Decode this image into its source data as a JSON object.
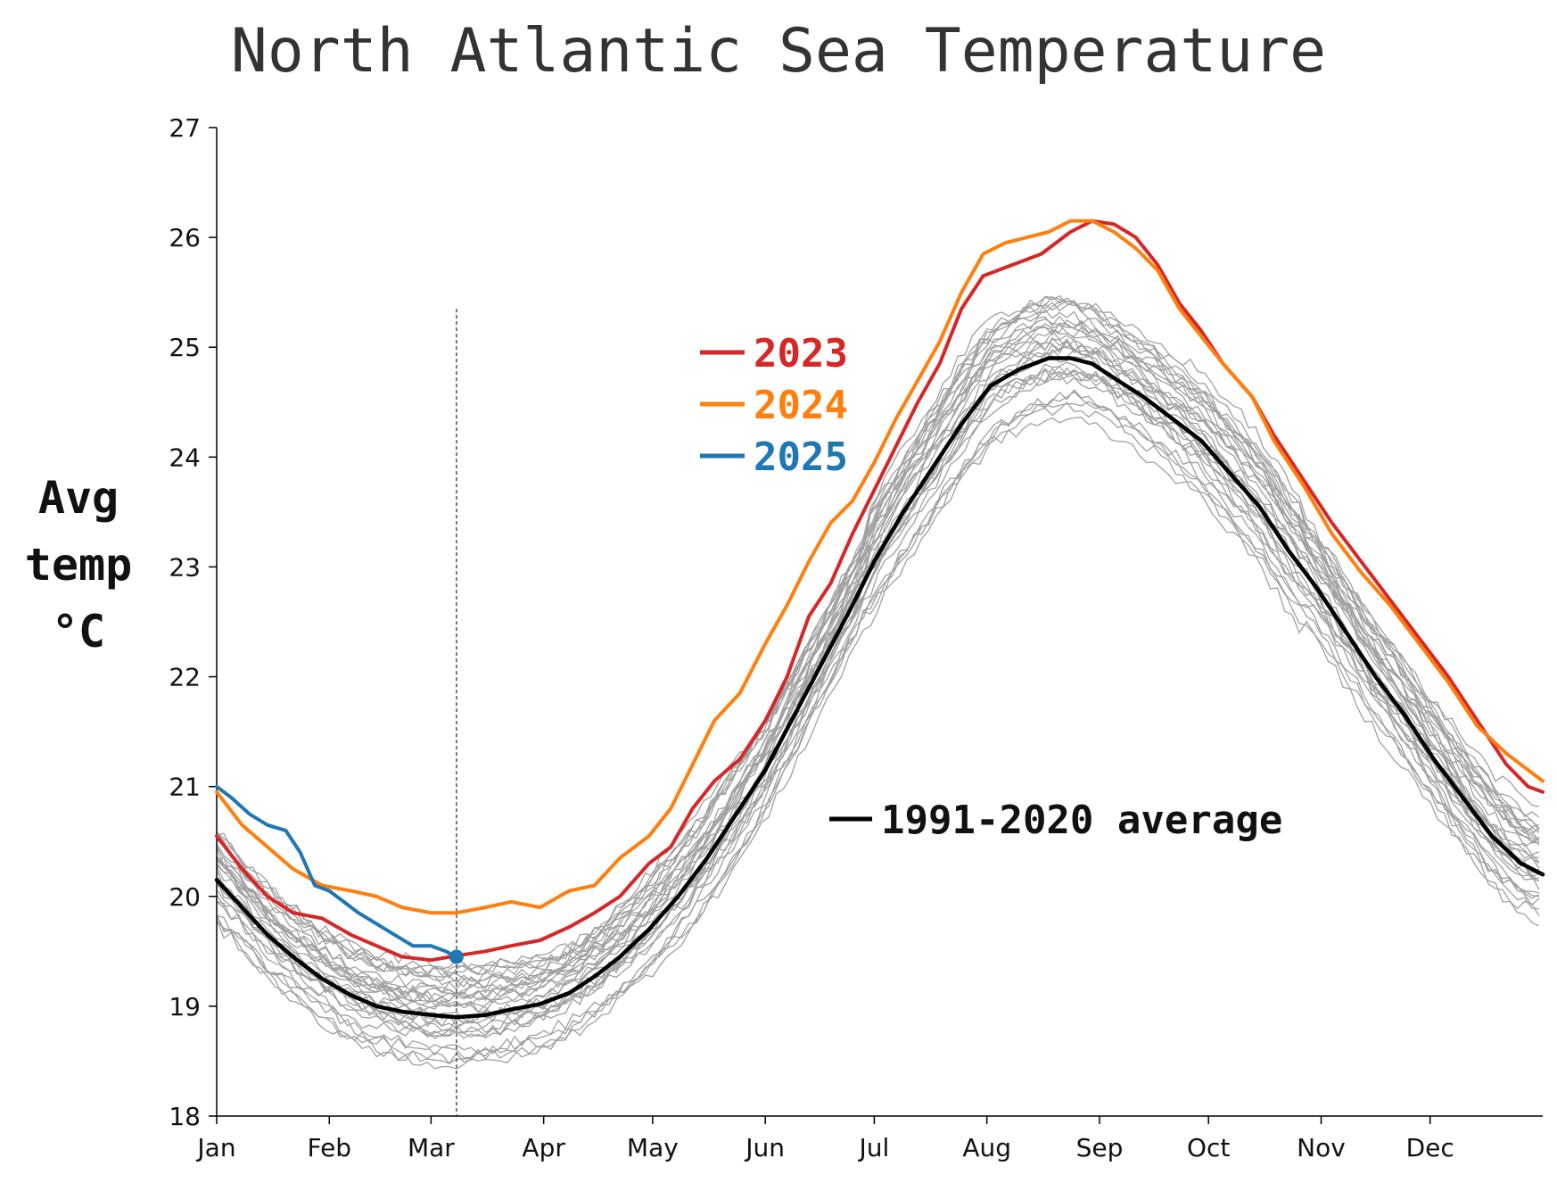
{
  "title": "North Atlantic Sea Temperature",
  "ylabel_lines": [
    "Avg",
    "temp",
    "°C"
  ],
  "colors": {
    "y2023": "#d62728",
    "y2024": "#ff7f0e",
    "y2025": "#1f77b4",
    "average": "#000000",
    "historical": "#a0a0a0",
    "marker_line": "#333333"
  },
  "legend": [
    {
      "label": "2023",
      "color": "#d62728"
    },
    {
      "label": "2024",
      "color": "#ff7f0e"
    },
    {
      "label": "2025",
      "color": "#1f77b4"
    }
  ],
  "annotation": "1991-2020 average",
  "chart_data": {
    "type": "line",
    "title": "North Atlantic Sea Temperature",
    "xlabel": "",
    "ylabel": "Avg temp °C",
    "x_unit": "day of year",
    "xlim": [
      1,
      366
    ],
    "ylim": [
      18,
      27
    ],
    "yticks": [
      18,
      19,
      20,
      21,
      22,
      23,
      24,
      25,
      26,
      27
    ],
    "xticks": [
      {
        "label": "Jan",
        "day": 1
      },
      {
        "label": "Feb",
        "day": 32
      },
      {
        "label": "Mar",
        "day": 60
      },
      {
        "label": "Apr",
        "day": 91
      },
      {
        "label": "May",
        "day": 121
      },
      {
        "label": "Jun",
        "day": 152
      },
      {
        "label": "Jul",
        "day": 182
      },
      {
        "label": "Aug",
        "day": 213
      },
      {
        "label": "Sep",
        "day": 244
      },
      {
        "label": "Oct",
        "day": 274
      },
      {
        "label": "Nov",
        "day": 305
      },
      {
        "label": "Dec",
        "day": 335
      }
    ],
    "grid": false,
    "legend_position": "upper-center",
    "current_day_marker": 67,
    "series": [
      {
        "name": "2023",
        "color": "#d62728",
        "points": [
          [
            1,
            20.55
          ],
          [
            8,
            20.25
          ],
          [
            15,
            20.0
          ],
          [
            22,
            19.85
          ],
          [
            30,
            19.8
          ],
          [
            38,
            19.65
          ],
          [
            45,
            19.55
          ],
          [
            52,
            19.45
          ],
          [
            60,
            19.42
          ],
          [
            67,
            19.46
          ],
          [
            75,
            19.5
          ],
          [
            82,
            19.55
          ],
          [
            90,
            19.6
          ],
          [
            98,
            19.72
          ],
          [
            105,
            19.85
          ],
          [
            112,
            20.0
          ],
          [
            120,
            20.3
          ],
          [
            126,
            20.45
          ],
          [
            132,
            20.8
          ],
          [
            138,
            21.05
          ],
          [
            145,
            21.25
          ],
          [
            152,
            21.6
          ],
          [
            158,
            22.0
          ],
          [
            164,
            22.55
          ],
          [
            170,
            22.85
          ],
          [
            176,
            23.3
          ],
          [
            182,
            23.7
          ],
          [
            188,
            24.1
          ],
          [
            194,
            24.5
          ],
          [
            200,
            24.85
          ],
          [
            206,
            25.35
          ],
          [
            212,
            25.65
          ],
          [
            220,
            25.75
          ],
          [
            228,
            25.85
          ],
          [
            236,
            26.05
          ],
          [
            242,
            26.15
          ],
          [
            248,
            26.12
          ],
          [
            254,
            26.0
          ],
          [
            260,
            25.75
          ],
          [
            266,
            25.4
          ],
          [
            272,
            25.15
          ],
          [
            278,
            24.85
          ],
          [
            286,
            24.55
          ],
          [
            292,
            24.2
          ],
          [
            300,
            23.8
          ],
          [
            308,
            23.4
          ],
          [
            316,
            23.05
          ],
          [
            324,
            22.7
          ],
          [
            332,
            22.35
          ],
          [
            340,
            22.0
          ],
          [
            348,
            21.6
          ],
          [
            356,
            21.2
          ],
          [
            362,
            21.0
          ],
          [
            366,
            20.95
          ]
        ]
      },
      {
        "name": "2024",
        "color": "#ff7f0e",
        "points": [
          [
            1,
            20.95
          ],
          [
            8,
            20.65
          ],
          [
            15,
            20.45
          ],
          [
            22,
            20.25
          ],
          [
            30,
            20.1
          ],
          [
            38,
            20.05
          ],
          [
            45,
            20.0
          ],
          [
            52,
            19.9
          ],
          [
            60,
            19.85
          ],
          [
            67,
            19.85
          ],
          [
            75,
            19.9
          ],
          [
            82,
            19.95
          ],
          [
            90,
            19.9
          ],
          [
            98,
            20.05
          ],
          [
            105,
            20.1
          ],
          [
            112,
            20.35
          ],
          [
            120,
            20.55
          ],
          [
            126,
            20.8
          ],
          [
            132,
            21.2
          ],
          [
            138,
            21.6
          ],
          [
            145,
            21.85
          ],
          [
            152,
            22.3
          ],
          [
            158,
            22.65
          ],
          [
            164,
            23.05
          ],
          [
            170,
            23.4
          ],
          [
            176,
            23.6
          ],
          [
            182,
            23.95
          ],
          [
            188,
            24.35
          ],
          [
            194,
            24.7
          ],
          [
            200,
            25.05
          ],
          [
            206,
            25.5
          ],
          [
            212,
            25.85
          ],
          [
            218,
            25.95
          ],
          [
            224,
            26.0
          ],
          [
            230,
            26.05
          ],
          [
            236,
            26.15
          ],
          [
            242,
            26.15
          ],
          [
            248,
            26.05
          ],
          [
            254,
            25.9
          ],
          [
            260,
            25.7
          ],
          [
            266,
            25.35
          ],
          [
            272,
            25.1
          ],
          [
            278,
            24.85
          ],
          [
            286,
            24.55
          ],
          [
            292,
            24.15
          ],
          [
            300,
            23.75
          ],
          [
            308,
            23.3
          ],
          [
            316,
            22.95
          ],
          [
            324,
            22.65
          ],
          [
            332,
            22.3
          ],
          [
            340,
            21.95
          ],
          [
            348,
            21.55
          ],
          [
            356,
            21.3
          ],
          [
            362,
            21.15
          ],
          [
            366,
            21.05
          ]
        ]
      },
      {
        "name": "2025",
        "color": "#1f77b4",
        "points": [
          [
            1,
            21.0
          ],
          [
            5,
            20.9
          ],
          [
            10,
            20.75
          ],
          [
            15,
            20.65
          ],
          [
            20,
            20.6
          ],
          [
            24,
            20.4
          ],
          [
            28,
            20.1
          ],
          [
            32,
            20.05
          ],
          [
            36,
            19.95
          ],
          [
            40,
            19.85
          ],
          [
            45,
            19.75
          ],
          [
            50,
            19.65
          ],
          [
            55,
            19.55
          ],
          [
            60,
            19.55
          ],
          [
            64,
            19.5
          ],
          [
            67,
            19.45
          ]
        ]
      },
      {
        "name": "1991-2020 average",
        "color": "#000000",
        "points": [
          [
            1,
            20.15
          ],
          [
            8,
            19.9
          ],
          [
            15,
            19.65
          ],
          [
            22,
            19.45
          ],
          [
            30,
            19.25
          ],
          [
            38,
            19.1
          ],
          [
            45,
            19.0
          ],
          [
            52,
            18.95
          ],
          [
            60,
            18.92
          ],
          [
            67,
            18.9
          ],
          [
            75,
            18.92
          ],
          [
            82,
            18.97
          ],
          [
            90,
            19.02
          ],
          [
            98,
            19.12
          ],
          [
            105,
            19.27
          ],
          [
            112,
            19.45
          ],
          [
            120,
            19.7
          ],
          [
            128,
            20.0
          ],
          [
            136,
            20.35
          ],
          [
            144,
            20.75
          ],
          [
            152,
            21.15
          ],
          [
            160,
            21.65
          ],
          [
            168,
            22.15
          ],
          [
            176,
            22.65
          ],
          [
            182,
            23.05
          ],
          [
            190,
            23.5
          ],
          [
            198,
            23.9
          ],
          [
            206,
            24.3
          ],
          [
            214,
            24.65
          ],
          [
            222,
            24.8
          ],
          [
            230,
            24.9
          ],
          [
            236,
            24.9
          ],
          [
            242,
            24.85
          ],
          [
            248,
            24.72
          ],
          [
            256,
            24.55
          ],
          [
            264,
            24.35
          ],
          [
            272,
            24.15
          ],
          [
            280,
            23.85
          ],
          [
            288,
            23.55
          ],
          [
            296,
            23.15
          ],
          [
            304,
            22.8
          ],
          [
            312,
            22.4
          ],
          [
            320,
            22.0
          ],
          [
            328,
            21.65
          ],
          [
            336,
            21.25
          ],
          [
            344,
            20.9
          ],
          [
            352,
            20.55
          ],
          [
            360,
            20.3
          ],
          [
            366,
            20.2
          ]
        ]
      }
    ],
    "background_series_note": "1991-2022 individual years (grey)"
  }
}
